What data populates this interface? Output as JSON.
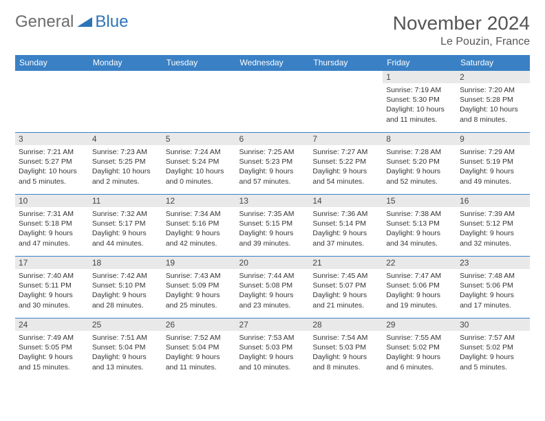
{
  "brand": {
    "part1": "General",
    "part2": "Blue"
  },
  "title": "November 2024",
  "location": "Le Pouzin, France",
  "colors": {
    "header_bg": "#3a80c4",
    "header_text": "#ffffff",
    "daynum_bg": "#e9e9e9",
    "border": "#3a80c4",
    "brand_gray": "#6b6b6b",
    "brand_blue": "#2c74b8"
  },
  "day_headers": [
    "Sunday",
    "Monday",
    "Tuesday",
    "Wednesday",
    "Thursday",
    "Friday",
    "Saturday"
  ],
  "weeks": [
    [
      {
        "n": "",
        "sr": "",
        "ss": "",
        "dl": ""
      },
      {
        "n": "",
        "sr": "",
        "ss": "",
        "dl": ""
      },
      {
        "n": "",
        "sr": "",
        "ss": "",
        "dl": ""
      },
      {
        "n": "",
        "sr": "",
        "ss": "",
        "dl": ""
      },
      {
        "n": "",
        "sr": "",
        "ss": "",
        "dl": ""
      },
      {
        "n": "1",
        "sr": "Sunrise: 7:19 AM",
        "ss": "Sunset: 5:30 PM",
        "dl": "Daylight: 10 hours and 11 minutes."
      },
      {
        "n": "2",
        "sr": "Sunrise: 7:20 AM",
        "ss": "Sunset: 5:28 PM",
        "dl": "Daylight: 10 hours and 8 minutes."
      }
    ],
    [
      {
        "n": "3",
        "sr": "Sunrise: 7:21 AM",
        "ss": "Sunset: 5:27 PM",
        "dl": "Daylight: 10 hours and 5 minutes."
      },
      {
        "n": "4",
        "sr": "Sunrise: 7:23 AM",
        "ss": "Sunset: 5:25 PM",
        "dl": "Daylight: 10 hours and 2 minutes."
      },
      {
        "n": "5",
        "sr": "Sunrise: 7:24 AM",
        "ss": "Sunset: 5:24 PM",
        "dl": "Daylight: 10 hours and 0 minutes."
      },
      {
        "n": "6",
        "sr": "Sunrise: 7:25 AM",
        "ss": "Sunset: 5:23 PM",
        "dl": "Daylight: 9 hours and 57 minutes."
      },
      {
        "n": "7",
        "sr": "Sunrise: 7:27 AM",
        "ss": "Sunset: 5:22 PM",
        "dl": "Daylight: 9 hours and 54 minutes."
      },
      {
        "n": "8",
        "sr": "Sunrise: 7:28 AM",
        "ss": "Sunset: 5:20 PM",
        "dl": "Daylight: 9 hours and 52 minutes."
      },
      {
        "n": "9",
        "sr": "Sunrise: 7:29 AM",
        "ss": "Sunset: 5:19 PM",
        "dl": "Daylight: 9 hours and 49 minutes."
      }
    ],
    [
      {
        "n": "10",
        "sr": "Sunrise: 7:31 AM",
        "ss": "Sunset: 5:18 PM",
        "dl": "Daylight: 9 hours and 47 minutes."
      },
      {
        "n": "11",
        "sr": "Sunrise: 7:32 AM",
        "ss": "Sunset: 5:17 PM",
        "dl": "Daylight: 9 hours and 44 minutes."
      },
      {
        "n": "12",
        "sr": "Sunrise: 7:34 AM",
        "ss": "Sunset: 5:16 PM",
        "dl": "Daylight: 9 hours and 42 minutes."
      },
      {
        "n": "13",
        "sr": "Sunrise: 7:35 AM",
        "ss": "Sunset: 5:15 PM",
        "dl": "Daylight: 9 hours and 39 minutes."
      },
      {
        "n": "14",
        "sr": "Sunrise: 7:36 AM",
        "ss": "Sunset: 5:14 PM",
        "dl": "Daylight: 9 hours and 37 minutes."
      },
      {
        "n": "15",
        "sr": "Sunrise: 7:38 AM",
        "ss": "Sunset: 5:13 PM",
        "dl": "Daylight: 9 hours and 34 minutes."
      },
      {
        "n": "16",
        "sr": "Sunrise: 7:39 AM",
        "ss": "Sunset: 5:12 PM",
        "dl": "Daylight: 9 hours and 32 minutes."
      }
    ],
    [
      {
        "n": "17",
        "sr": "Sunrise: 7:40 AM",
        "ss": "Sunset: 5:11 PM",
        "dl": "Daylight: 9 hours and 30 minutes."
      },
      {
        "n": "18",
        "sr": "Sunrise: 7:42 AM",
        "ss": "Sunset: 5:10 PM",
        "dl": "Daylight: 9 hours and 28 minutes."
      },
      {
        "n": "19",
        "sr": "Sunrise: 7:43 AM",
        "ss": "Sunset: 5:09 PM",
        "dl": "Daylight: 9 hours and 25 minutes."
      },
      {
        "n": "20",
        "sr": "Sunrise: 7:44 AM",
        "ss": "Sunset: 5:08 PM",
        "dl": "Daylight: 9 hours and 23 minutes."
      },
      {
        "n": "21",
        "sr": "Sunrise: 7:45 AM",
        "ss": "Sunset: 5:07 PM",
        "dl": "Daylight: 9 hours and 21 minutes."
      },
      {
        "n": "22",
        "sr": "Sunrise: 7:47 AM",
        "ss": "Sunset: 5:06 PM",
        "dl": "Daylight: 9 hours and 19 minutes."
      },
      {
        "n": "23",
        "sr": "Sunrise: 7:48 AM",
        "ss": "Sunset: 5:06 PM",
        "dl": "Daylight: 9 hours and 17 minutes."
      }
    ],
    [
      {
        "n": "24",
        "sr": "Sunrise: 7:49 AM",
        "ss": "Sunset: 5:05 PM",
        "dl": "Daylight: 9 hours and 15 minutes."
      },
      {
        "n": "25",
        "sr": "Sunrise: 7:51 AM",
        "ss": "Sunset: 5:04 PM",
        "dl": "Daylight: 9 hours and 13 minutes."
      },
      {
        "n": "26",
        "sr": "Sunrise: 7:52 AM",
        "ss": "Sunset: 5:04 PM",
        "dl": "Daylight: 9 hours and 11 minutes."
      },
      {
        "n": "27",
        "sr": "Sunrise: 7:53 AM",
        "ss": "Sunset: 5:03 PM",
        "dl": "Daylight: 9 hours and 10 minutes."
      },
      {
        "n": "28",
        "sr": "Sunrise: 7:54 AM",
        "ss": "Sunset: 5:03 PM",
        "dl": "Daylight: 9 hours and 8 minutes."
      },
      {
        "n": "29",
        "sr": "Sunrise: 7:55 AM",
        "ss": "Sunset: 5:02 PM",
        "dl": "Daylight: 9 hours and 6 minutes."
      },
      {
        "n": "30",
        "sr": "Sunrise: 7:57 AM",
        "ss": "Sunset: 5:02 PM",
        "dl": "Daylight: 9 hours and 5 minutes."
      }
    ]
  ]
}
